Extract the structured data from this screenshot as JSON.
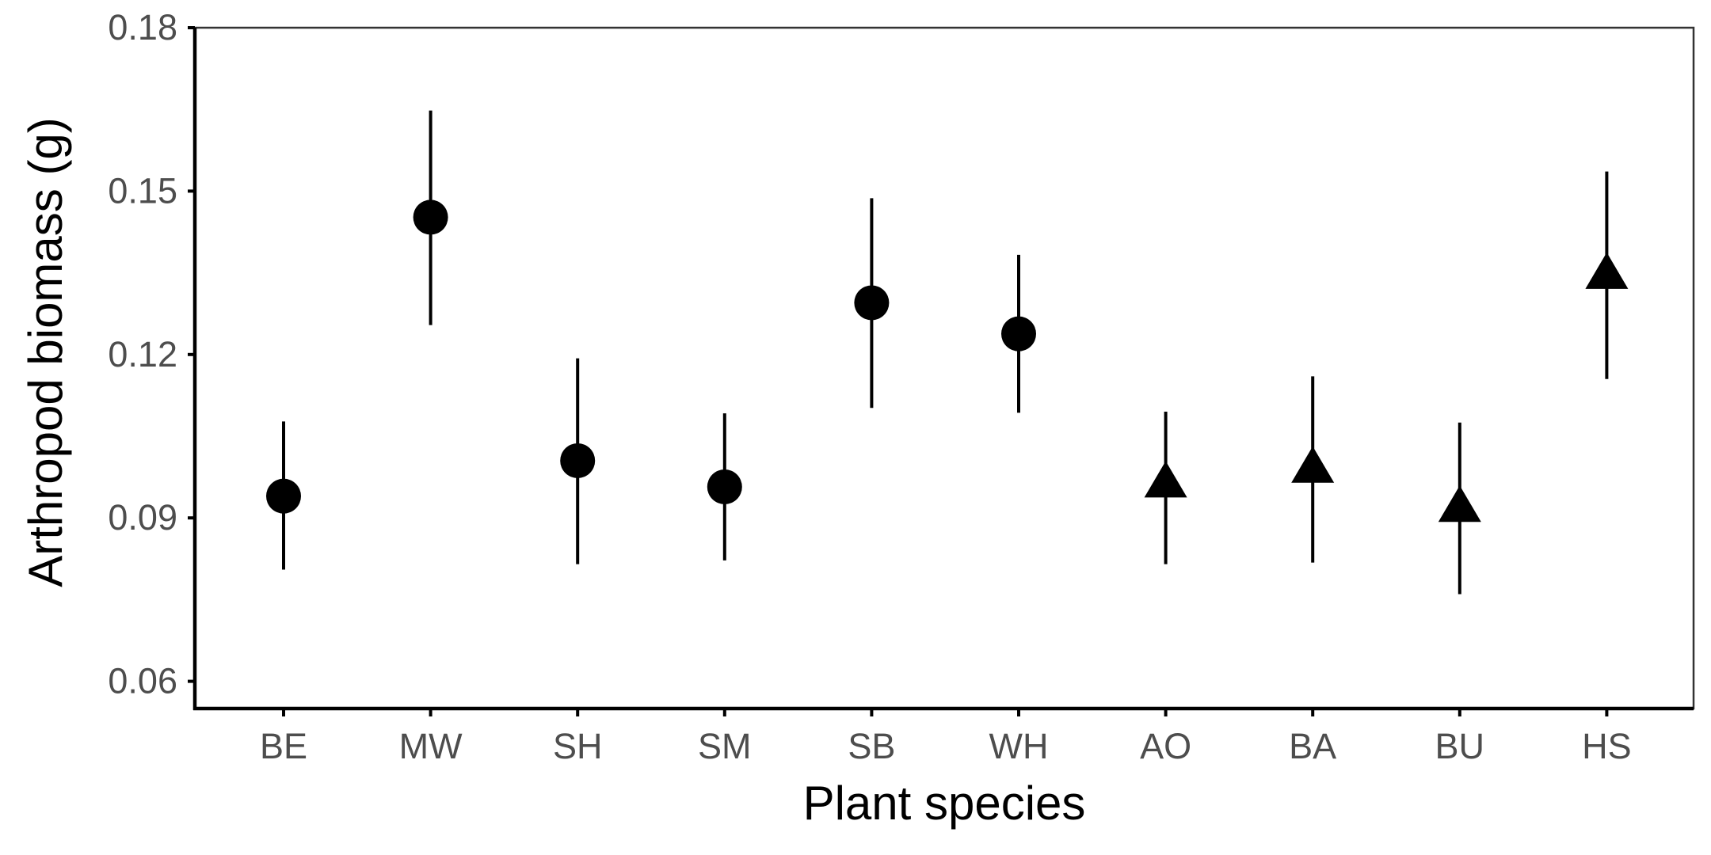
{
  "chart_data": {
    "type": "scatter",
    "subtype": "point-with-error-bars",
    "xlabel": "Plant species",
    "ylabel": "Arthropod biomass (g)",
    "categories": [
      "BE",
      "MW",
      "SH",
      "SM",
      "SB",
      "WH",
      "AO",
      "BA",
      "BU",
      "HS"
    ],
    "ylim": [
      0.055,
      0.18
    ],
    "yticks": [
      0.06,
      0.09,
      0.12,
      0.15,
      0.18
    ],
    "ytick_labels": [
      "0.06",
      "0.09",
      "0.12",
      "0.15",
      "0.18"
    ],
    "grid": false,
    "legend": "none",
    "colors": {
      "marks": "#000000",
      "tick_text": "#4d4d4d",
      "axis": "#000000",
      "background": "#ffffff"
    },
    "points": [
      {
        "category": "BE",
        "value": 0.094,
        "lower": 0.0805,
        "upper": 0.1077,
        "shape": "circle"
      },
      {
        "category": "MW",
        "value": 0.1452,
        "lower": 0.1254,
        "upper": 0.1648,
        "shape": "circle"
      },
      {
        "category": "SH",
        "value": 0.1005,
        "lower": 0.0815,
        "upper": 0.1193,
        "shape": "circle"
      },
      {
        "category": "SM",
        "value": 0.0957,
        "lower": 0.0822,
        "upper": 0.1092,
        "shape": "circle"
      },
      {
        "category": "SB",
        "value": 0.1295,
        "lower": 0.1102,
        "upper": 0.1487,
        "shape": "circle"
      },
      {
        "category": "WH",
        "value": 0.1238,
        "lower": 0.1093,
        "upper": 0.1383,
        "shape": "circle"
      },
      {
        "category": "AO",
        "value": 0.0963,
        "lower": 0.0815,
        "upper": 0.1095,
        "shape": "triangle"
      },
      {
        "category": "BA",
        "value": 0.099,
        "lower": 0.0818,
        "upper": 0.116,
        "shape": "triangle"
      },
      {
        "category": "BU",
        "value": 0.0918,
        "lower": 0.076,
        "upper": 0.1075,
        "shape": "triangle"
      },
      {
        "category": "HS",
        "value": 0.1346,
        "lower": 0.1155,
        "upper": 0.1536,
        "shape": "triangle"
      }
    ]
  }
}
